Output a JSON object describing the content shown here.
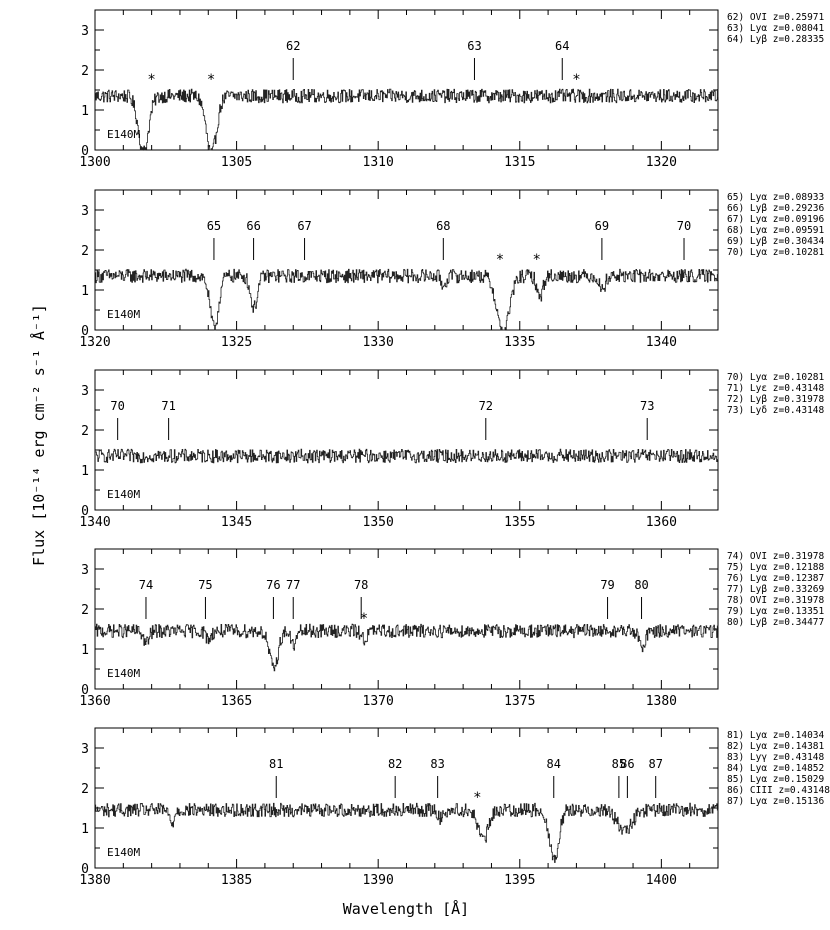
{
  "figure": {
    "xlabel": "Wavelength [Å]",
    "ylabel": "Flux [10⁻¹⁴ erg cm⁻² s⁻¹ Å⁻¹]"
  },
  "chart_data": [
    {
      "type": "line",
      "instrument": "E140M",
      "xlim": [
        1300,
        1322
      ],
      "ylim": [
        0,
        3.5
      ],
      "xticks": [
        1300,
        1305,
        1310,
        1315,
        1320
      ],
      "yticks": [
        0,
        1,
        2,
        3
      ],
      "continuum": 1.35,
      "absorptions": [
        {
          "x": 1301.7,
          "depth": 1.4,
          "width": 0.18
        },
        {
          "x": 1304.1,
          "depth": 1.45,
          "width": 0.18
        }
      ],
      "markers": [
        {
          "x": 1307.0,
          "label": "62"
        },
        {
          "x": 1313.4,
          "label": "63"
        },
        {
          "x": 1316.5,
          "label": "64"
        }
      ],
      "stars": [
        1302.0,
        1304.1,
        1317.0
      ],
      "ids": [
        "62) OVI z=0.25971",
        "63) Lyα z=0.08041",
        "64) Lyβ z=0.28335"
      ]
    },
    {
      "type": "line",
      "instrument": "E140M",
      "xlim": [
        1320,
        1342
      ],
      "ylim": [
        0,
        3.5
      ],
      "xticks": [
        1320,
        1325,
        1330,
        1335,
        1340
      ],
      "yticks": [
        0,
        1,
        2,
        3
      ],
      "continuum": 1.35,
      "absorptions": [
        {
          "x": 1324.2,
          "depth": 1.3,
          "width": 0.15
        },
        {
          "x": 1325.6,
          "depth": 0.8,
          "width": 0.12
        },
        {
          "x": 1332.3,
          "depth": 0.25,
          "width": 0.08
        },
        {
          "x": 1334.4,
          "depth": 1.4,
          "width": 0.22
        },
        {
          "x": 1335.7,
          "depth": 0.55,
          "width": 0.1
        },
        {
          "x": 1337.9,
          "depth": 0.35,
          "width": 0.1
        }
      ],
      "markers": [
        {
          "x": 1324.2,
          "label": "65"
        },
        {
          "x": 1325.6,
          "label": "66"
        },
        {
          "x": 1327.4,
          "label": "67"
        },
        {
          "x": 1332.3,
          "label": "68"
        },
        {
          "x": 1337.9,
          "label": "69"
        },
        {
          "x": 1340.8,
          "label": "70"
        }
      ],
      "stars": [
        1334.3,
        1335.6
      ],
      "ids": [
        "65) Lyα z=0.08933",
        "66) Lyβ z=0.29236",
        "67) Lyα z=0.09196",
        "68) Lyα z=0.09591",
        "69) Lyβ z=0.30434",
        "70) Lyα z=0.10281"
      ]
    },
    {
      "type": "line",
      "instrument": "E140M",
      "xlim": [
        1340,
        1362
      ],
      "ylim": [
        0,
        3.5
      ],
      "xticks": [
        1340,
        1345,
        1350,
        1355,
        1360
      ],
      "yticks": [
        0,
        1,
        2,
        3
      ],
      "continuum": 1.35,
      "absorptions": [],
      "markers": [
        {
          "x": 1340.8,
          "label": "70"
        },
        {
          "x": 1342.6,
          "label": "71"
        },
        {
          "x": 1353.8,
          "label": "72"
        },
        {
          "x": 1359.5,
          "label": "73"
        }
      ],
      "stars": [],
      "ids": [
        "70) Lyα z=0.10281",
        "71) Lyε z=0.43148",
        "72) Lyβ z=0.31978",
        "73) Lyδ z=0.43148"
      ]
    },
    {
      "type": "line",
      "instrument": "E140M",
      "xlim": [
        1360,
        1382
      ],
      "ylim": [
        0,
        3.5
      ],
      "xticks": [
        1360,
        1365,
        1370,
        1375,
        1380
      ],
      "yticks": [
        0,
        1,
        2,
        3
      ],
      "continuum": 1.45,
      "absorptions": [
        {
          "x": 1361.8,
          "depth": 0.3,
          "width": 0.1
        },
        {
          "x": 1364.0,
          "depth": 0.2,
          "width": 0.1
        },
        {
          "x": 1366.3,
          "depth": 0.95,
          "width": 0.15
        },
        {
          "x": 1367.0,
          "depth": 0.35,
          "width": 0.1
        },
        {
          "x": 1369.5,
          "depth": 0.2,
          "width": 0.1
        },
        {
          "x": 1379.3,
          "depth": 0.45,
          "width": 0.1
        }
      ],
      "markers": [
        {
          "x": 1361.8,
          "label": "74"
        },
        {
          "x": 1363.9,
          "label": "75"
        },
        {
          "x": 1366.3,
          "label": "76"
        },
        {
          "x": 1367.0,
          "label": "77"
        },
        {
          "x": 1369.4,
          "label": "78"
        },
        {
          "x": 1378.1,
          "label": "79"
        },
        {
          "x": 1379.3,
          "label": "80"
        }
      ],
      "stars": [
        1369.5
      ],
      "ids": [
        "74) OVI z=0.31978",
        "75) Lyα z=0.12188",
        "76) Lyα z=0.12387",
        "77) Lyβ z=0.33269",
        "78) OVI z=0.31978",
        "79) Lyα z=0.13351",
        "80) Lyβ z=0.34477"
      ]
    },
    {
      "type": "line",
      "instrument": "E140M",
      "xlim": [
        1380,
        1402
      ],
      "ylim": [
        0,
        3.5
      ],
      "xticks": [
        1380,
        1385,
        1390,
        1395,
        1400
      ],
      "yticks": [
        0,
        1,
        2,
        3
      ],
      "continuum": 1.45,
      "absorptions": [
        {
          "x": 1382.7,
          "depth": 0.35,
          "width": 0.08
        },
        {
          "x": 1392.2,
          "depth": 0.2,
          "width": 0.1
        },
        {
          "x": 1393.7,
          "depth": 0.75,
          "width": 0.18
        },
        {
          "x": 1396.2,
          "depth": 1.25,
          "width": 0.16
        },
        {
          "x": 1398.7,
          "depth": 0.55,
          "width": 0.25
        }
      ],
      "markers": [
        {
          "x": 1386.4,
          "label": "81"
        },
        {
          "x": 1390.6,
          "label": "82"
        },
        {
          "x": 1392.1,
          "label": "83"
        },
        {
          "x": 1396.2,
          "label": "84"
        },
        {
          "x": 1398.5,
          "label": "85"
        },
        {
          "x": 1398.8,
          "label": "86"
        },
        {
          "x": 1399.8,
          "label": "87"
        }
      ],
      "stars": [
        1393.5
      ],
      "ids": [
        "81) Lyα z=0.14034",
        "82) Lyα z=0.14381",
        "83) Lyγ z=0.43148",
        "84) Lyα z=0.14852",
        "85) Lyα z=0.15029",
        "86) CIII z=0.43148",
        "87) Lyα z=0.15136"
      ]
    }
  ]
}
